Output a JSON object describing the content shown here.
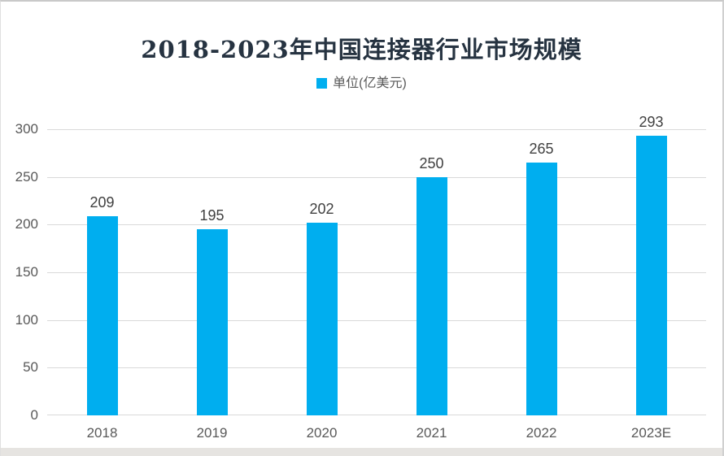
{
  "title": "2018-2023年中国连接器行业市场规模",
  "legend": {
    "label": "单位(亿美元)"
  },
  "colors": {
    "bar": "#00AEEF",
    "grid": "#d9d9d9",
    "axis_text": "#595959",
    "value_text": "#404040",
    "title_text": "#263341"
  },
  "chart_data": {
    "type": "bar",
    "categories": [
      "2018",
      "2019",
      "2020",
      "2021",
      "2022",
      "2023E"
    ],
    "values": [
      209,
      195,
      202,
      250,
      265,
      293
    ],
    "title": "2018-2023年中国连接器行业市场规模",
    "legend_entries": [
      "单位(亿美元)"
    ],
    "legend_position": "top-center",
    "xlabel": "",
    "ylabel": "",
    "ylim": [
      0,
      300
    ],
    "ytick_step": 50,
    "yticks": [
      0,
      50,
      100,
      150,
      200,
      250,
      300
    ],
    "grid": true,
    "data_labels": true
  }
}
